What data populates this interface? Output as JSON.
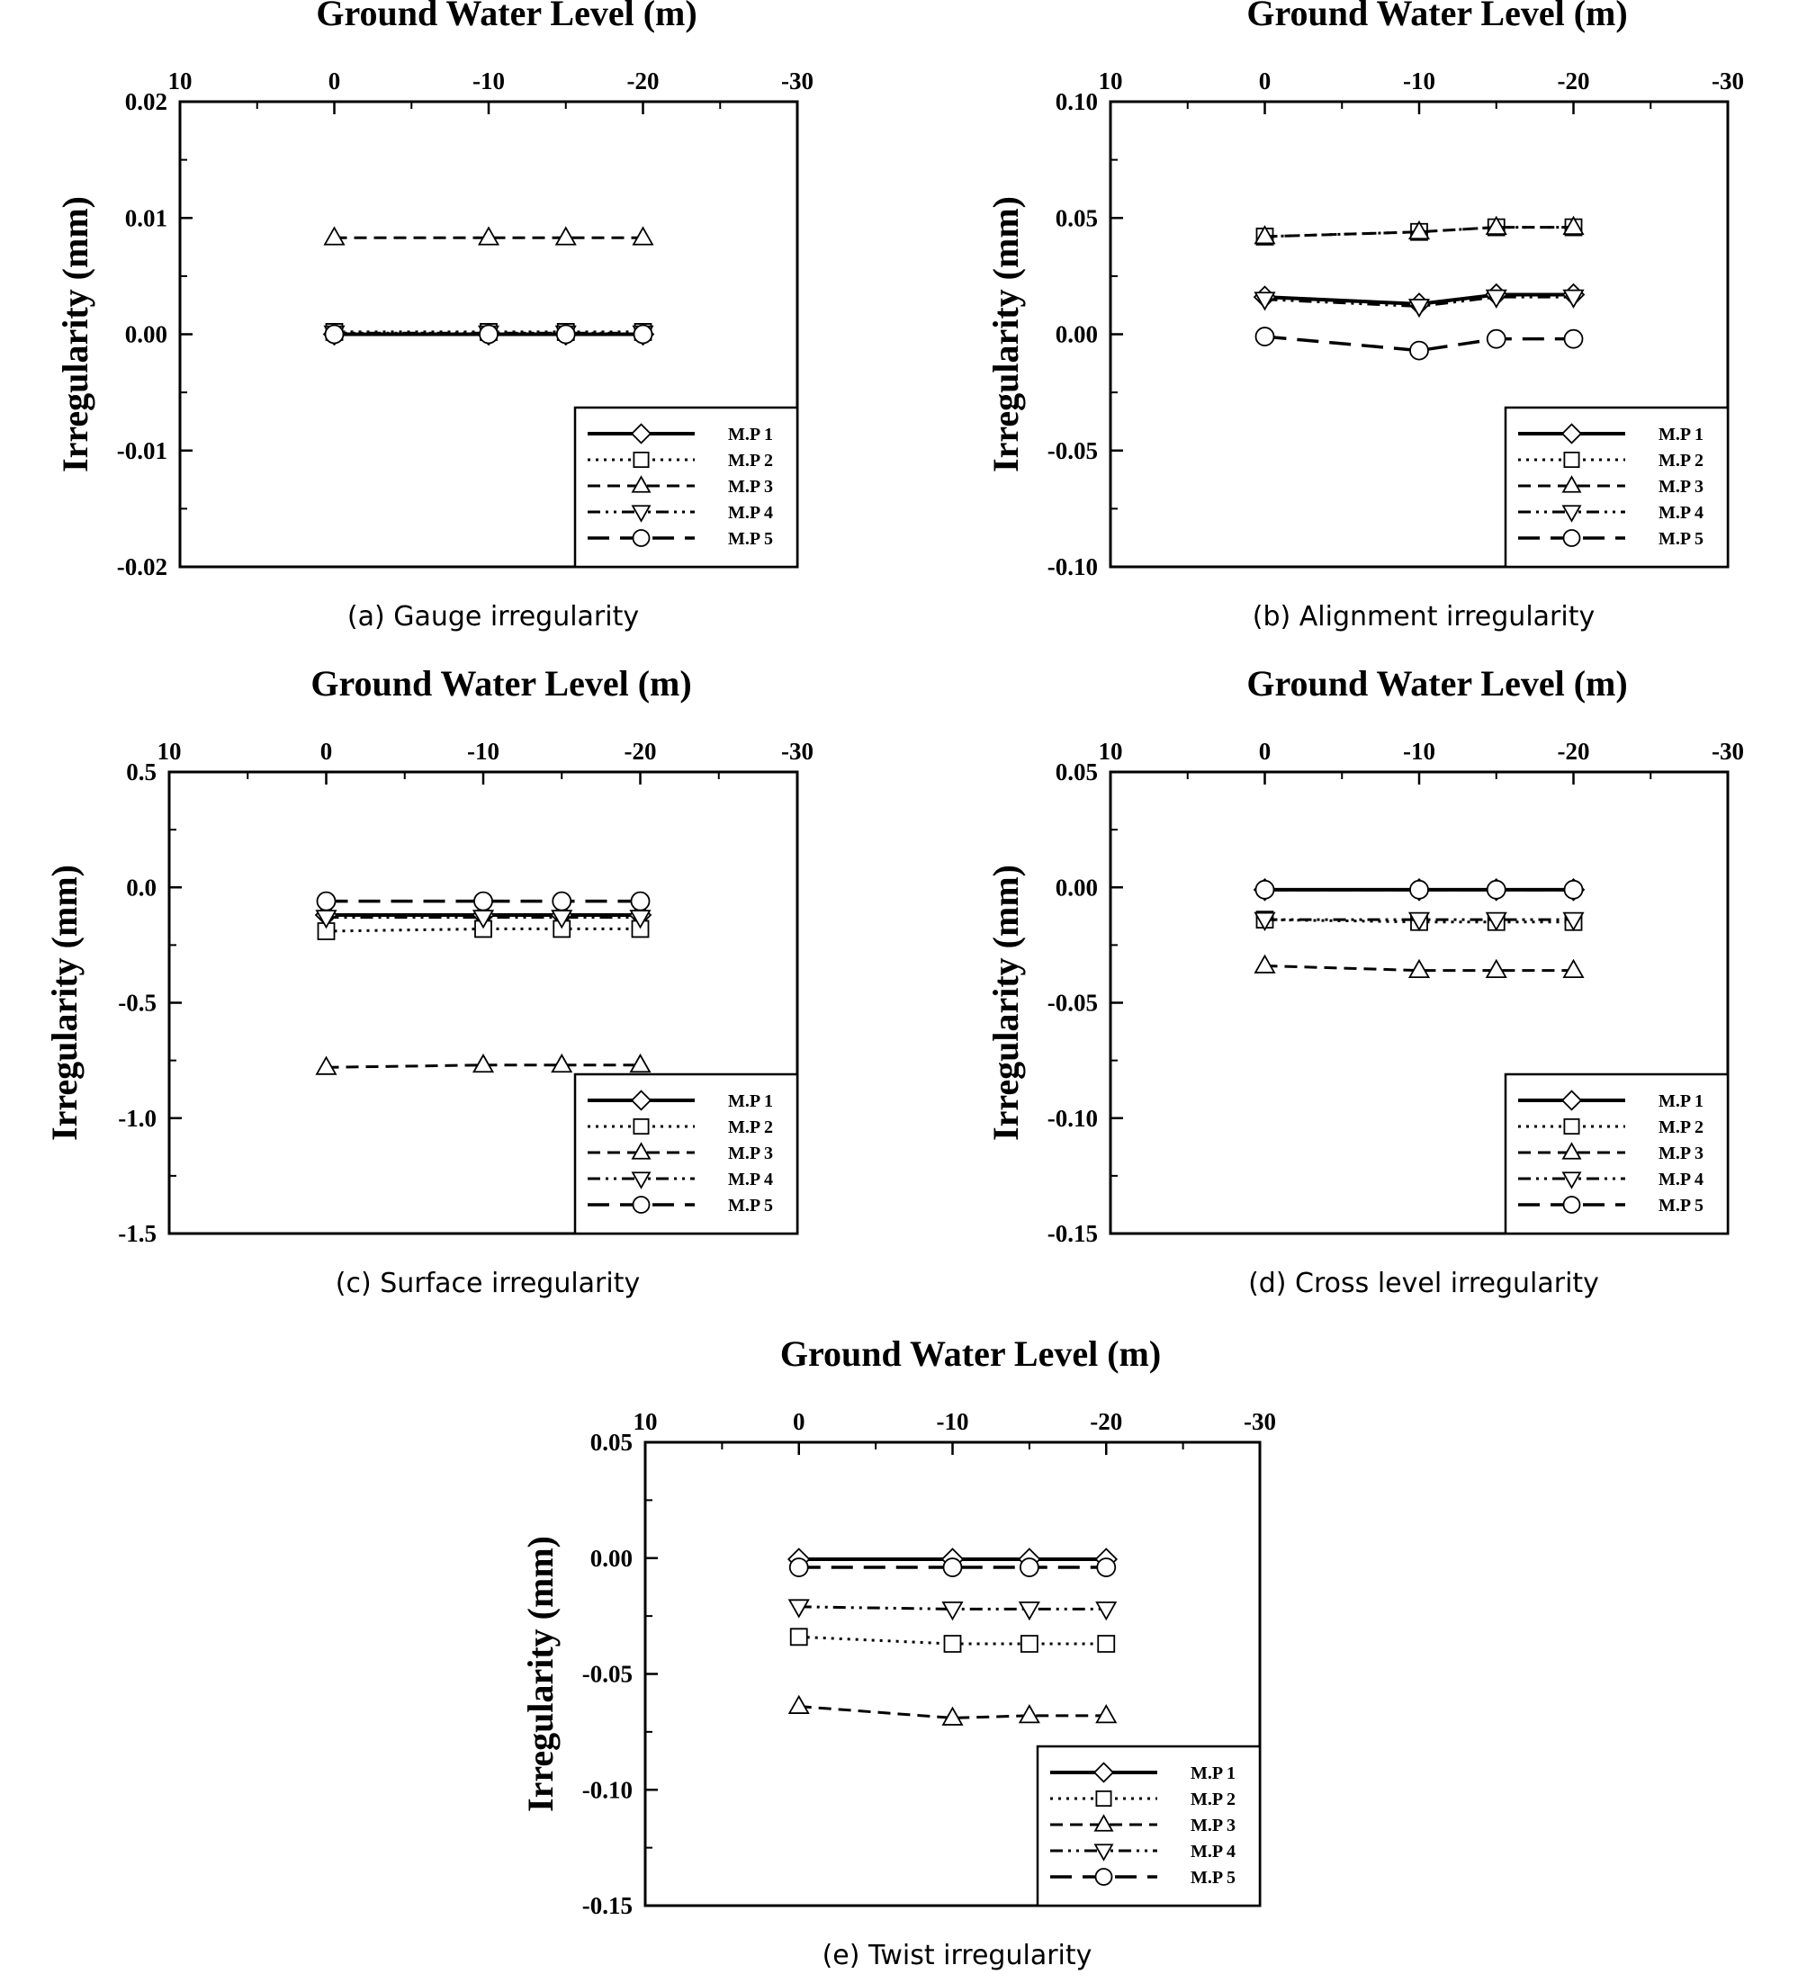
{
  "figure": {
    "legend_labels": [
      "M.P 1",
      "M.P 2",
      "M.P 3",
      "M.P 4",
      "M.P 5"
    ]
  },
  "chart_data": [
    {
      "type": "line",
      "panel": "a",
      "title": "Ground Water Level (m)",
      "caption": "(a)  Gauge  irregularity",
      "xlabel": "Ground Water Level (m)",
      "ylabel": "Irregularity (mm)",
      "x_axis_position": "top",
      "x_reversed": true,
      "xlim": [
        10,
        -30
      ],
      "xticks": [
        10,
        0,
        -10,
        -20,
        -30
      ],
      "xtick_labels": [
        "10",
        "0",
        "-10",
        "-20",
        "-30"
      ],
      "ylim": [
        -0.02,
        0.02
      ],
      "yticks": [
        -0.02,
        -0.01,
        0.0,
        0.01,
        0.02
      ],
      "ytick_labels": [
        "-0.02",
        "-0.01",
        "0.00",
        "0.01",
        "0.02"
      ],
      "legend": "bottom-right",
      "x": [
        0,
        -10,
        -15,
        -20
      ],
      "series": [
        {
          "name": "M.P 1",
          "values": [
            0.0,
            0.0,
            0.0,
            0.0
          ]
        },
        {
          "name": "M.P 2",
          "values": [
            0.0002,
            0.0002,
            0.0002,
            0.0002
          ]
        },
        {
          "name": "M.P 3",
          "values": [
            0.0083,
            0.0083,
            0.0083,
            0.0083
          ]
        },
        {
          "name": "M.P 4",
          "values": [
            0.0001,
            0.0001,
            0.0001,
            0.0001
          ]
        },
        {
          "name": "M.P 5",
          "values": [
            0.0,
            0.0,
            0.0,
            0.0
          ]
        }
      ]
    },
    {
      "type": "line",
      "panel": "b",
      "title": "Ground Water Level (m)",
      "caption": "(b)  Alignment  irregularity",
      "xlabel": "Ground Water Level (m)",
      "ylabel": "Irregularity (mm)",
      "x_axis_position": "top",
      "x_reversed": true,
      "xlim": [
        10,
        -30
      ],
      "xticks": [
        10,
        0,
        -10,
        -20,
        -30
      ],
      "xtick_labels": [
        "10",
        "0",
        "-10",
        "-20",
        "-30"
      ],
      "ylim": [
        -0.1,
        0.1
      ],
      "yticks": [
        -0.1,
        -0.05,
        0.0,
        0.05,
        0.1
      ],
      "ytick_labels": [
        "-0.10",
        "-0.05",
        "0.00",
        "0.05",
        "0.10"
      ],
      "legend": "bottom-right",
      "x": [
        0,
        -10,
        -15,
        -20
      ],
      "series": [
        {
          "name": "M.P 1",
          "values": [
            0.016,
            0.013,
            0.017,
            0.017
          ]
        },
        {
          "name": "M.P 2",
          "values": [
            0.042,
            0.044,
            0.046,
            0.046
          ]
        },
        {
          "name": "M.P 3",
          "values": [
            0.042,
            0.044,
            0.046,
            0.046
          ]
        },
        {
          "name": "M.P 4",
          "values": [
            0.015,
            0.012,
            0.016,
            0.016
          ]
        },
        {
          "name": "M.P 5",
          "values": [
            -0.001,
            -0.007,
            -0.002,
            -0.002
          ]
        }
      ]
    },
    {
      "type": "line",
      "panel": "c",
      "title": "Ground Water Level (m)",
      "caption": "(c)  Surface  irregularity",
      "xlabel": "Ground Water Level (m)",
      "ylabel": "Irregularity (mm)",
      "x_axis_position": "top",
      "x_reversed": true,
      "xlim": [
        10,
        -30
      ],
      "xticks": [
        10,
        0,
        -10,
        -20,
        -30
      ],
      "xtick_labels": [
        "10",
        "0",
        "-10",
        "-20",
        "-30"
      ],
      "ylim": [
        -1.5,
        0.5
      ],
      "yticks": [
        -1.5,
        -1.0,
        -0.5,
        0.0,
        0.5
      ],
      "ytick_labels": [
        "-1.5",
        "-1.0",
        "-0.5",
        "0.0",
        "0.5"
      ],
      "legend": "bottom-right",
      "x": [
        0,
        -10,
        -15,
        -20
      ],
      "series": [
        {
          "name": "M.P 1",
          "values": [
            -0.12,
            -0.12,
            -0.12,
            -0.12
          ]
        },
        {
          "name": "M.P 2",
          "values": [
            -0.19,
            -0.18,
            -0.18,
            -0.18
          ]
        },
        {
          "name": "M.P 3",
          "values": [
            -0.78,
            -0.77,
            -0.77,
            -0.77
          ]
        },
        {
          "name": "M.P 4",
          "values": [
            -0.13,
            -0.13,
            -0.13,
            -0.13
          ]
        },
        {
          "name": "M.P 5",
          "values": [
            -0.06,
            -0.06,
            -0.06,
            -0.06
          ]
        }
      ]
    },
    {
      "type": "line",
      "panel": "d",
      "title": "Ground Water Level (m)",
      "caption": "(d)  Cross  level  irregularity",
      "xlabel": "Ground Water Level (m)",
      "ylabel": "Irregularity (mm)",
      "x_axis_position": "top",
      "x_reversed": true,
      "xlim": [
        10,
        -30
      ],
      "xticks": [
        10,
        0,
        -10,
        -20,
        -30
      ],
      "xtick_labels": [
        "10",
        "0",
        "-10",
        "-20",
        "-30"
      ],
      "ylim": [
        -0.15,
        0.05
      ],
      "yticks": [
        -0.15,
        -0.1,
        -0.05,
        0.0,
        0.05
      ],
      "ytick_labels": [
        "-0.15",
        "-0.10",
        "-0.05",
        "0.00",
        "0.05"
      ],
      "legend": "bottom-right",
      "x": [
        0,
        -10,
        -15,
        -20
      ],
      "series": [
        {
          "name": "M.P 1",
          "values": [
            -0.001,
            -0.001,
            -0.001,
            -0.001
          ]
        },
        {
          "name": "M.P 2",
          "values": [
            -0.014,
            -0.015,
            -0.015,
            -0.015
          ]
        },
        {
          "name": "M.P 3",
          "values": [
            -0.034,
            -0.036,
            -0.036,
            -0.036
          ]
        },
        {
          "name": "M.P 4",
          "values": [
            -0.014,
            -0.014,
            -0.014,
            -0.014
          ]
        },
        {
          "name": "M.P 5",
          "values": [
            -0.001,
            -0.001,
            -0.001,
            -0.001
          ]
        }
      ]
    },
    {
      "type": "line",
      "panel": "e",
      "title": "Ground Water Level (m)",
      "caption": "(e)  Twist  irregularity",
      "xlabel": "Ground Water Level (m)",
      "ylabel": "Irregularity (mm)",
      "x_axis_position": "top",
      "x_reversed": true,
      "xlim": [
        10,
        -30
      ],
      "xticks": [
        10,
        0,
        -10,
        -20,
        -30
      ],
      "xtick_labels": [
        "10",
        "0",
        "-10",
        "-20",
        "-30"
      ],
      "ylim": [
        -0.15,
        0.05
      ],
      "yticks": [
        -0.15,
        -0.1,
        -0.05,
        0.0,
        0.05
      ],
      "ytick_labels": [
        "-0.15",
        "-0.10",
        "-0.05",
        "0.00",
        "0.05"
      ],
      "legend": "bottom-right",
      "x": [
        0,
        -10,
        -15,
        -20
      ],
      "series": [
        {
          "name": "M.P 1",
          "values": [
            -0.0005,
            -0.0005,
            -0.0005,
            -0.0005
          ]
        },
        {
          "name": "M.P 2",
          "values": [
            -0.034,
            -0.037,
            -0.037,
            -0.037
          ]
        },
        {
          "name": "M.P 3",
          "values": [
            -0.064,
            -0.069,
            -0.068,
            -0.068
          ]
        },
        {
          "name": "M.P 4",
          "values": [
            -0.021,
            -0.022,
            -0.022,
            -0.022
          ]
        },
        {
          "name": "M.P 5",
          "values": [
            -0.004,
            -0.004,
            -0.004,
            -0.004
          ]
        }
      ]
    }
  ]
}
